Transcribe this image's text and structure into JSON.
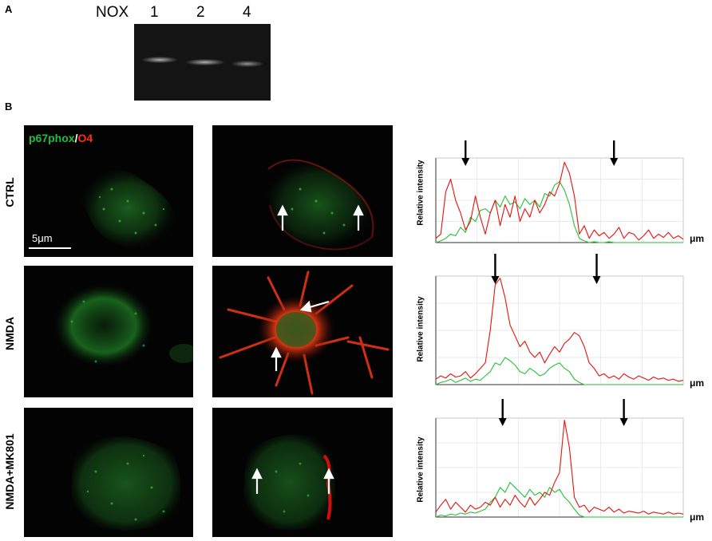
{
  "panel_a": {
    "letter": "A",
    "nox_label": "NOX",
    "lanes": [
      "1",
      "2",
      "4"
    ]
  },
  "panel_b": {
    "letter": "B",
    "legend": {
      "green": "p67phox",
      "slash": "/",
      "red": "O4"
    },
    "scale_bar": "5μm",
    "rows": [
      "CTRL",
      "NMDA",
      "NMDA+MK801"
    ],
    "profile_ylabel": "Relative intensity",
    "profile_xunit": "μm"
  },
  "colors": {
    "green": "#22c23a",
    "red": "#e8100a",
    "arrow": "#000000"
  },
  "chart_data": [
    {
      "type": "line",
      "row": "CTRL",
      "xlabel": "μm",
      "ylabel": "Relative intensity",
      "grid": true,
      "x": [
        0,
        2,
        4,
        6,
        8,
        10,
        12,
        14,
        16,
        18,
        20,
        22,
        24,
        26,
        28,
        30,
        32,
        34,
        36,
        38,
        40,
        42,
        44,
        46,
        48,
        50,
        52,
        54,
        56,
        58,
        60,
        62,
        64,
        66,
        68,
        70,
        72,
        74,
        76,
        78,
        80,
        82,
        84,
        86,
        88,
        90,
        92,
        94,
        96,
        98,
        100
      ],
      "series": [
        {
          "values": [
            0.0,
            0.02,
            0.05,
            0.1,
            0.08,
            0.18,
            0.12,
            0.3,
            0.25,
            0.38,
            0.4,
            0.35,
            0.5,
            0.42,
            0.55,
            0.45,
            0.48,
            0.4,
            0.52,
            0.45,
            0.5,
            0.42,
            0.58,
            0.55,
            0.68,
            0.72,
            0.62,
            0.45,
            0.2,
            0.05,
            0.02,
            0.0,
            0.01,
            0.0,
            0.0,
            0.01,
            0.0,
            0.0,
            0.0,
            0.0,
            0.0,
            0.0,
            0.0,
            0.0,
            0.0,
            0.0,
            0.0,
            0.0,
            0.0,
            0.0,
            0.0
          ]
        },
        {
          "values": [
            0.05,
            0.1,
            0.6,
            0.75,
            0.5,
            0.35,
            0.15,
            0.25,
            0.55,
            0.3,
            0.1,
            0.35,
            0.5,
            0.2,
            0.45,
            0.3,
            0.55,
            0.25,
            0.4,
            0.3,
            0.5,
            0.35,
            0.45,
            0.6,
            0.55,
            0.7,
            0.95,
            0.82,
            0.55,
            0.1,
            0.2,
            0.05,
            0.15,
            0.08,
            0.12,
            0.05,
            0.1,
            0.18,
            0.05,
            0.12,
            0.1,
            0.03,
            0.08,
            0.15,
            0.05,
            0.1,
            0.06,
            0.12,
            0.05,
            0.08,
            0.04
          ]
        }
      ],
      "arrows_x": [
        12,
        72
      ]
    },
    {
      "type": "line",
      "row": "NMDA",
      "xlabel": "μm",
      "ylabel": "Relative intensity",
      "grid": true,
      "x": [
        0,
        2,
        4,
        6,
        8,
        10,
        12,
        14,
        16,
        18,
        20,
        22,
        24,
        26,
        28,
        30,
        32,
        34,
        36,
        38,
        40,
        42,
        44,
        46,
        48,
        50,
        52,
        54,
        56,
        58,
        60,
        62,
        64,
        66,
        68,
        70,
        72,
        74,
        76,
        78,
        80,
        82,
        84,
        86,
        88,
        90,
        92,
        94,
        96,
        98,
        100
      ],
      "series": [
        {
          "values": [
            0.0,
            0.02,
            0.03,
            0.05,
            0.02,
            0.04,
            0.06,
            0.03,
            0.05,
            0.04,
            0.08,
            0.12,
            0.2,
            0.18,
            0.25,
            0.22,
            0.18,
            0.12,
            0.1,
            0.15,
            0.12,
            0.08,
            0.1,
            0.15,
            0.18,
            0.2,
            0.15,
            0.12,
            0.05,
            0.02,
            0.0,
            0.0,
            0.0,
            0.0,
            0.0,
            0.0,
            0.0,
            0.0,
            0.0,
            0.0,
            0.0,
            0.0,
            0.0,
            0.0,
            0.0,
            0.0,
            0.0,
            0.0,
            0.0,
            0.0,
            0.0
          ]
        },
        {
          "values": [
            0.05,
            0.08,
            0.06,
            0.1,
            0.07,
            0.08,
            0.12,
            0.06,
            0.1,
            0.15,
            0.2,
            0.5,
            0.92,
            0.98,
            0.8,
            0.55,
            0.45,
            0.35,
            0.4,
            0.3,
            0.25,
            0.3,
            0.2,
            0.28,
            0.35,
            0.3,
            0.38,
            0.42,
            0.48,
            0.45,
            0.35,
            0.2,
            0.15,
            0.08,
            0.1,
            0.06,
            0.08,
            0.05,
            0.1,
            0.07,
            0.05,
            0.08,
            0.06,
            0.04,
            0.07,
            0.05,
            0.06,
            0.04,
            0.05,
            0.03,
            0.04
          ]
        }
      ],
      "arrows_x": [
        24,
        65
      ]
    },
    {
      "type": "line",
      "row": "NMDA+MK801",
      "xlabel": "μm",
      "ylabel": "Relative intensity",
      "grid": true,
      "x": [
        0,
        2,
        4,
        6,
        8,
        10,
        12,
        14,
        16,
        18,
        20,
        22,
        24,
        26,
        28,
        30,
        32,
        34,
        36,
        38,
        40,
        42,
        44,
        46,
        48,
        50,
        52,
        54,
        56,
        58,
        60,
        62,
        64,
        66,
        68,
        70,
        72,
        74,
        76,
        78,
        80,
        82,
        84,
        86,
        88,
        90,
        92,
        94,
        96,
        98,
        100
      ],
      "series": [
        {
          "values": [
            0.0,
            0.02,
            0.01,
            0.03,
            0.02,
            0.04,
            0.03,
            0.05,
            0.04,
            0.06,
            0.08,
            0.15,
            0.2,
            0.3,
            0.25,
            0.35,
            0.3,
            0.25,
            0.2,
            0.28,
            0.22,
            0.25,
            0.2,
            0.3,
            0.25,
            0.28,
            0.2,
            0.15,
            0.08,
            0.02,
            0.0,
            0.0,
            0.0,
            0.0,
            0.0,
            0.0,
            0.0,
            0.0,
            0.0,
            0.0,
            0.0,
            0.0,
            0.0,
            0.0,
            0.0,
            0.0,
            0.0,
            0.0,
            0.0,
            0.0,
            0.0
          ]
        },
        {
          "values": [
            0.05,
            0.12,
            0.18,
            0.08,
            0.15,
            0.1,
            0.05,
            0.12,
            0.08,
            0.1,
            0.15,
            0.12,
            0.2,
            0.1,
            0.18,
            0.12,
            0.22,
            0.15,
            0.1,
            0.2,
            0.12,
            0.18,
            0.25,
            0.22,
            0.35,
            0.45,
            0.98,
            0.7,
            0.2,
            0.1,
            0.12,
            0.05,
            0.1,
            0.08,
            0.06,
            0.1,
            0.05,
            0.08,
            0.04,
            0.06,
            0.05,
            0.04,
            0.06,
            0.03,
            0.05,
            0.04,
            0.03,
            0.05,
            0.03,
            0.04,
            0.03
          ]
        }
      ],
      "arrows_x": [
        27,
        76
      ]
    }
  ]
}
